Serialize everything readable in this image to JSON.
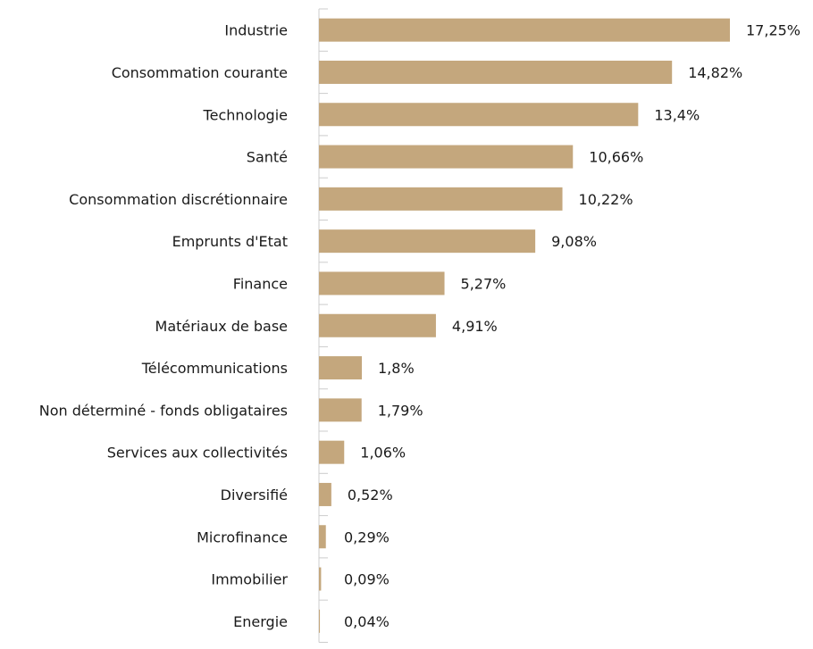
{
  "chart_data": {
    "type": "bar",
    "orientation": "horizontal",
    "categories": [
      "Industrie",
      "Consommation courante",
      "Technologie",
      "Santé",
      "Consommation discrétionnaire",
      "Emprunts d'Etat",
      "Finance",
      "Matériaux de base",
      "Télécommunications",
      "Non déterminé - fonds obligataires",
      "Services aux collectivités",
      "Diversifié",
      "Microfinance",
      "Immobilier",
      "Energie"
    ],
    "values": [
      17.25,
      14.82,
      13.4,
      10.66,
      10.22,
      9.08,
      5.27,
      4.91,
      1.8,
      1.79,
      1.06,
      0.52,
      0.29,
      0.09,
      0.04
    ],
    "value_labels": [
      "17,25%",
      "14,82%",
      "13,4%",
      "10,66%",
      "10,22%",
      "9,08%",
      "5,27%",
      "4,91%",
      "1,8%",
      "1,79%",
      "1,06%",
      "0,52%",
      "0,29%",
      "0,09%",
      "0,04%"
    ],
    "title": "",
    "xlabel": "",
    "ylabel": "",
    "grid": false,
    "legend": "none",
    "colors": {
      "bar": "#c4a77d",
      "axis": "#cccccc",
      "text": "#1a1a1a"
    }
  }
}
